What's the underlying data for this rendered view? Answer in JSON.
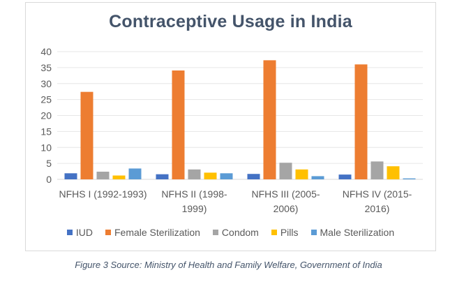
{
  "chart_data": {
    "type": "bar",
    "title": "Contraceptive Usage in India",
    "xlabel": "",
    "ylabel": "",
    "ylim": [
      0,
      40
    ],
    "yticks": [
      0,
      5,
      10,
      15,
      20,
      25,
      30,
      35,
      40
    ],
    "grid": true,
    "legend_position": "bottom",
    "categories": [
      [
        "NFHS I (1992-1993)"
      ],
      [
        "NFHS II (1998-",
        "1999)"
      ],
      [
        "NFHS III (2005-",
        "2006)"
      ],
      [
        "NFHS IV (2015-",
        "2016)"
      ]
    ],
    "series": [
      {
        "name": "IUD",
        "color": "#4472c4",
        "values": [
          1.9,
          1.6,
          1.7,
          1.5
        ]
      },
      {
        "name": "Female Sterilization",
        "color": "#ed7d31",
        "values": [
          27.4,
          34.1,
          37.3,
          36.0
        ]
      },
      {
        "name": "Condom",
        "color": "#a5a5a5",
        "values": [
          2.4,
          3.1,
          5.2,
          5.6
        ]
      },
      {
        "name": "Pills",
        "color": "#ffc000",
        "values": [
          1.2,
          2.1,
          3.1,
          4.1
        ]
      },
      {
        "name": "Male Sterilization",
        "color": "#5b9bd5",
        "values": [
          3.4,
          1.9,
          1.0,
          0.3
        ]
      }
    ]
  },
  "caption": "Figure 3 Source: Ministry of Health and Family Welfare, Government of India"
}
